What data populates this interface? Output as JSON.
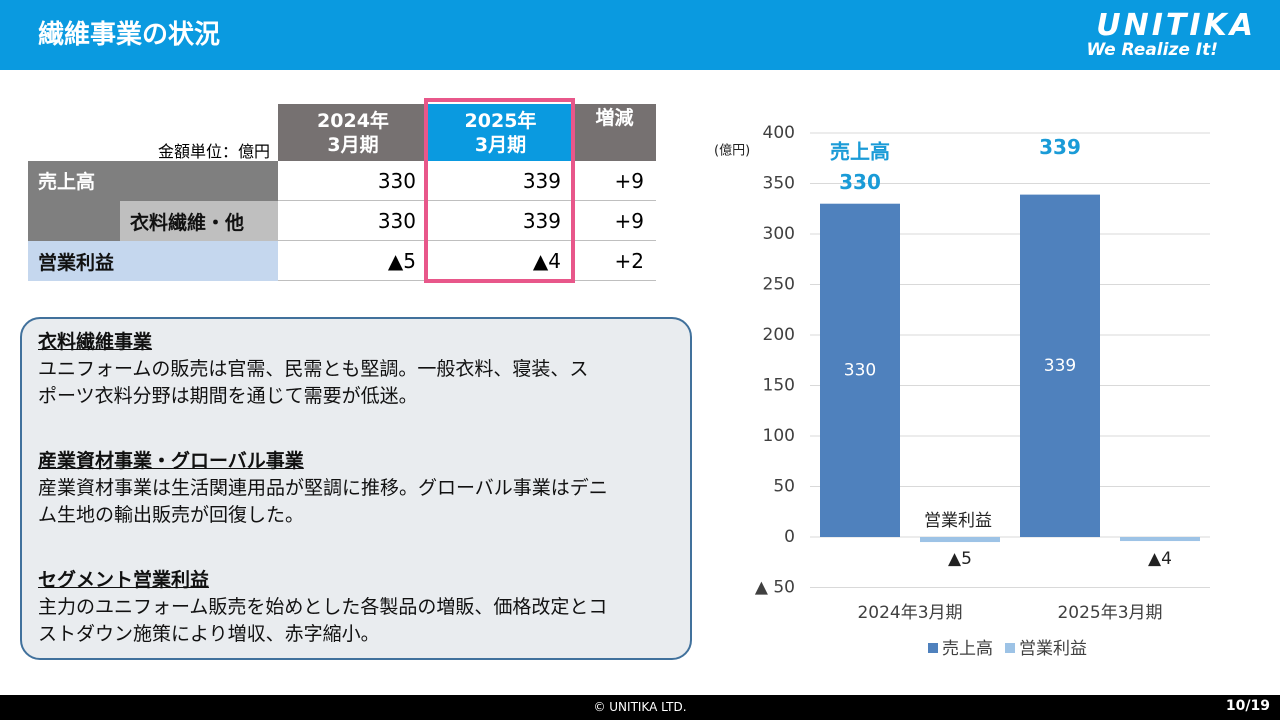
{
  "header": {
    "title": "繊維事業の状況",
    "logo": "UNITIKA",
    "tagline": "We Realize It!"
  },
  "table": {
    "unit": "金額単位：億円",
    "columns": [
      [
        "2024年",
        "3月期"
      ],
      [
        "2025年",
        "3月期"
      ],
      [
        "増減"
      ]
    ],
    "rows": [
      {
        "label": "売上高",
        "values": [
          "330",
          "339",
          "+9"
        ]
      },
      {
        "label": "衣料繊維・他",
        "values": [
          "330",
          "339",
          "+9"
        ]
      },
      {
        "label": "営業利益",
        "values": [
          "▲5",
          "▲4",
          "+2"
        ]
      }
    ]
  },
  "notes": [
    {
      "heading": "衣料繊維事業",
      "lines": [
        "ユニフォームの販売は官需、民需とも堅調。一般衣料、寝装、ス",
        "ポーツ衣料分野は期間を通じて需要が低迷。"
      ]
    },
    {
      "heading": "産業資材事業・グローバル事業",
      "lines": [
        "産業資材事業は生活関連用品が堅調に推移。グローバル事業はデニ",
        "ム生地の輸出販売が回復した。"
      ]
    },
    {
      "heading": "セグメント営業利益",
      "lines": [
        "主力のユニフォーム販売を始めとした各製品の増販、価格改定とコ",
        "ストダウン施策により増収、赤字縮小。"
      ]
    }
  ],
  "chart_data": {
    "type": "bar",
    "y_label": "(億円)",
    "categories": [
      "2024年3月期",
      "2025年3月期"
    ],
    "series": [
      {
        "name": "売上高",
        "color": "#4f81bd",
        "values": [
          330,
          339
        ]
      },
      {
        "name": "営業利益",
        "color": "#9dc3e6",
        "values": [
          -5,
          -4
        ],
        "value_labels": [
          "▲5",
          "▲4"
        ]
      }
    ],
    "annotations": [
      "売上高",
      "営業利益"
    ],
    "ylim": [
      -50,
      400
    ],
    "yticks": [
      {
        "value": -50,
        "label": "▲ 50"
      },
      0,
      50,
      100,
      150,
      200,
      250,
      300,
      350,
      400
    ],
    "grid": true,
    "legend": "bottom"
  },
  "footer": {
    "copyright": "© UNITIKA LTD.",
    "page": "10/19"
  }
}
